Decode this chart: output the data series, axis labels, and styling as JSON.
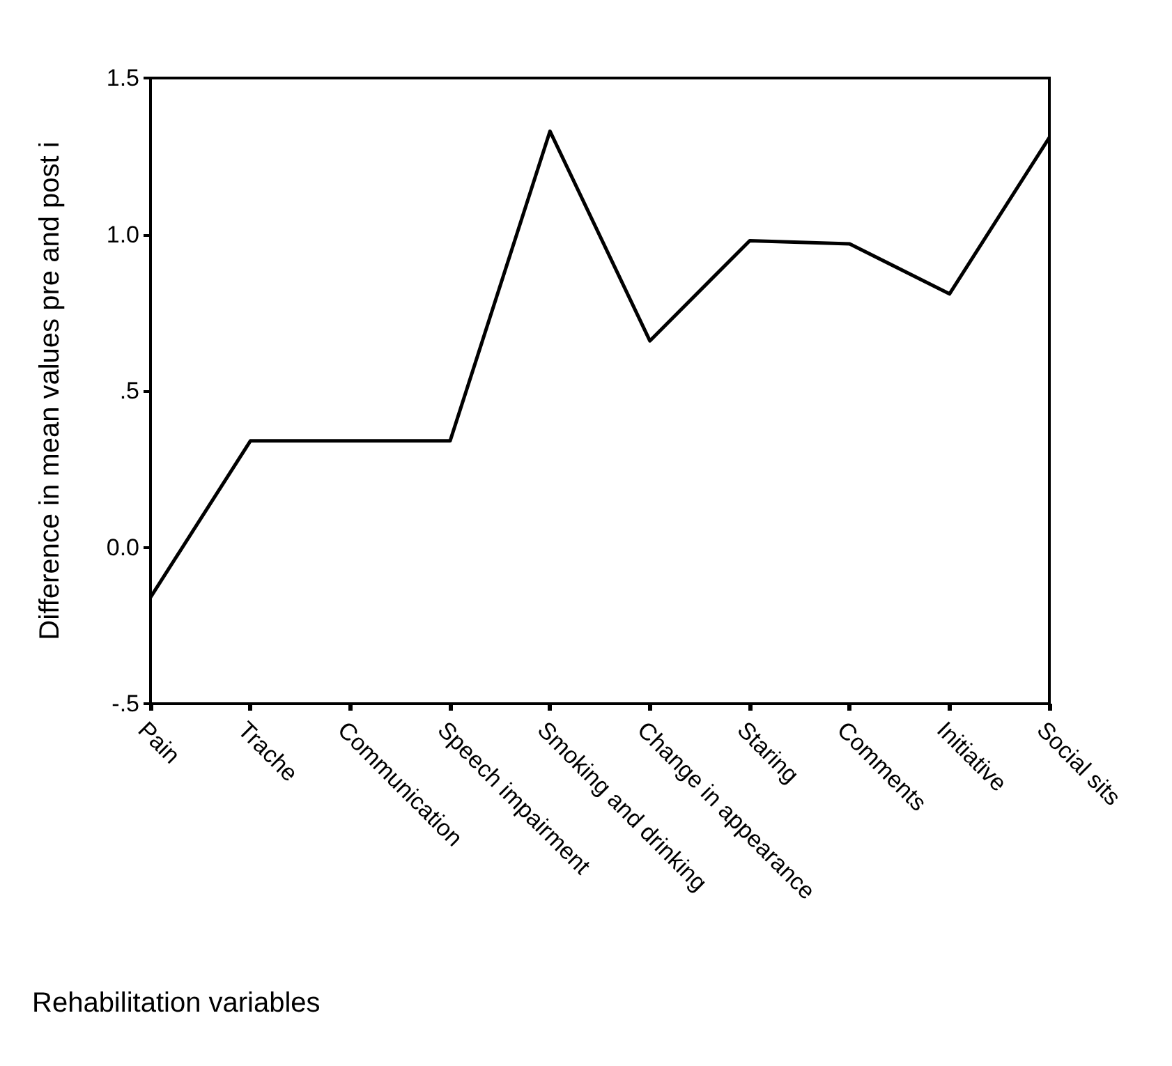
{
  "chart_data": {
    "type": "line",
    "xlabel": "Rehabilitation variables",
    "ylabel": "Difference in mean values pre and post i",
    "categories": [
      "Pain",
      "Trache",
      "Communication",
      "Speech impairment",
      "Smoking and drinking",
      "Change in appearance",
      "Staring",
      "Comments",
      "Initiative",
      "Social sits"
    ],
    "values": [
      -0.16,
      0.34,
      0.34,
      0.34,
      1.33,
      0.66,
      0.98,
      0.97,
      0.81,
      1.31
    ],
    "color": "#000000",
    "ylim": [
      -0.5,
      1.5
    ],
    "yticks": [
      {
        "value": -0.5,
        "label": "-.5"
      },
      {
        "value": 0,
        "label": "0.0"
      },
      {
        "value": 0.5,
        "label": ".5"
      },
      {
        "value": 1,
        "label": "1.0"
      },
      {
        "value": 1.5,
        "label": "1.5"
      }
    ],
    "grid": false,
    "marker": "none",
    "line_style": "solid"
  }
}
